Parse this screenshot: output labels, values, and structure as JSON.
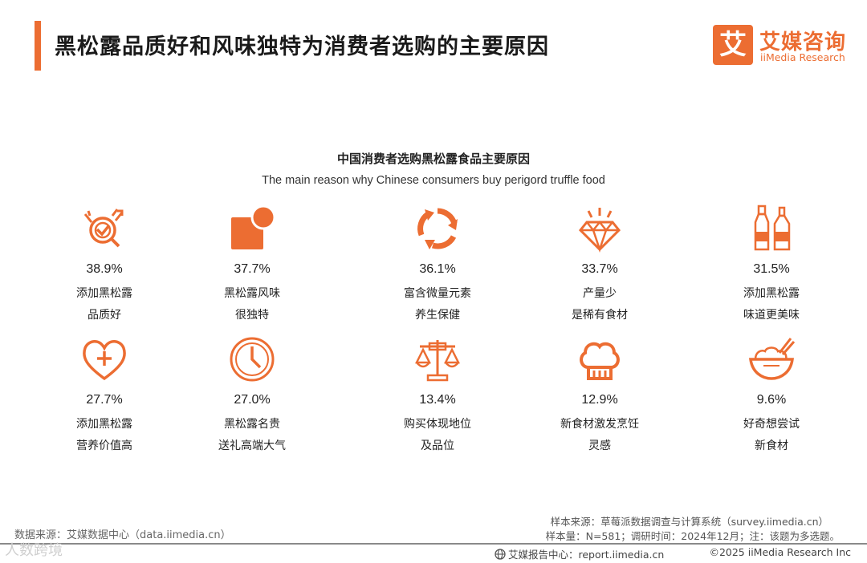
{
  "header": {
    "title": "黑松露品质好和风味独特为消费者选购的主要原因",
    "logo_mark": "艾",
    "logo_cn": "艾媒咨询",
    "logo_en": "iiMedia Research"
  },
  "colors": {
    "accent": "#ec6d32",
    "text": "#222222"
  },
  "chart_data": {
    "type": "table",
    "title": "中国消费者选购黑松露食品主要原因",
    "subtitle": "The main reason why Chinese consumers buy perigord truffle food",
    "unit": "%",
    "items": [
      {
        "value": "38.9%",
        "label1": "添加黑松露",
        "label2": "品质好",
        "icon": "quality-check-icon"
      },
      {
        "value": "37.7%",
        "label1": "黑松露风味",
        "label2": "很独特",
        "icon": "shapes-icon"
      },
      {
        "value": "36.1%",
        "label1": "富含微量元素",
        "label2": "养生保健",
        "icon": "recycle-icon"
      },
      {
        "value": "33.7%",
        "label1": "产量少",
        "label2": "是稀有食材",
        "icon": "diamond-icon"
      },
      {
        "value": "31.5%",
        "label1": "添加黑松露",
        "label2": "味道更美味",
        "icon": "bottles-icon"
      },
      {
        "value": "27.7%",
        "label1": "添加黑松露",
        "label2": "营养价值高",
        "icon": "heart-plus-icon"
      },
      {
        "value": "27.0%",
        "label1": "黑松露名贵",
        "label2": "送礼高端大气",
        "icon": "clock-icon"
      },
      {
        "value": "13.4%",
        "label1": "购买体现地位",
        "label2": "及品位",
        "icon": "scales-icon"
      },
      {
        "value": "12.9%",
        "label1": "新食材激发烹饪",
        "label2": "灵感",
        "icon": "chef-hat-icon"
      },
      {
        "value": "9.6%",
        "label1": "好奇想尝试",
        "label2": "新食材",
        "icon": "bowl-icon"
      }
    ]
  },
  "footer": {
    "data_source": "数据来源：艾媒数据中心（data.iimedia.cn）",
    "sample_source": "样本来源：草莓派数据调查与计算系统（survey.iimedia.cn）",
    "sample_size": "样本量：N=581；调研时间：2024年12月；注：该题为多选题。",
    "report_center": "艾媒报告中心：report.iimedia.cn",
    "copyright": "©2025  iiMedia Research  Inc",
    "watermark": "人数跨境"
  }
}
